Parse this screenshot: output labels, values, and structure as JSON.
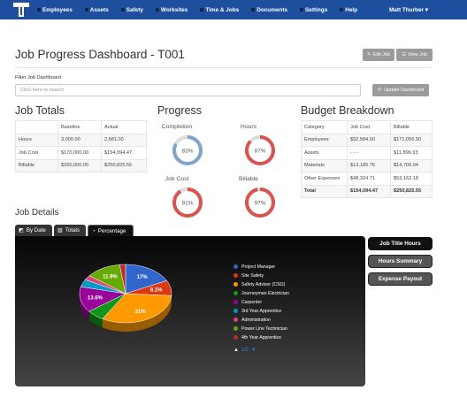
{
  "nav": {
    "items": [
      {
        "label": "Employees",
        "icon": "users-icon"
      },
      {
        "label": "Assets",
        "icon": "truck-icon"
      },
      {
        "label": "Safety",
        "icon": "shield-icon"
      },
      {
        "label": "Worksites",
        "icon": "map-icon"
      },
      {
        "label": "Time & Jobs",
        "icon": "clock-icon"
      },
      {
        "label": "Documents",
        "icon": "file-icon"
      },
      {
        "label": "Settings",
        "icon": "gear-icon"
      },
      {
        "label": "Help",
        "icon": "help-icon"
      }
    ],
    "user": "Matt Thurber ▾"
  },
  "header": {
    "title": "Job Progress Dashboard - T001",
    "edit_label": "Edit Job",
    "view_label": "View Job"
  },
  "filter": {
    "label": "Filter Job Dashboard",
    "placeholder": "Click here to search",
    "update_label": "Update Dashboard"
  },
  "job_totals": {
    "title": "Job Totals",
    "headers": [
      "",
      "Baseline",
      "Actual"
    ],
    "rows": [
      [
        "Hours",
        "3,000.00",
        "2,581.00"
      ],
      [
        "Job Cost",
        "$170,000.00",
        "$154,094.47"
      ],
      [
        "Billable",
        "$260,000.00",
        "$250,825.55"
      ]
    ]
  },
  "progress": {
    "title": "Progress",
    "items": [
      {
        "label": "Completion",
        "percent": 83,
        "text": "83%",
        "color": "#7fa4cc"
      },
      {
        "label": "Hours",
        "percent": 87,
        "text": "87%",
        "color": "#d9534f"
      },
      {
        "label": "Job Cost",
        "percent": 91,
        "text": "91%",
        "color": "#d9534f"
      },
      {
        "label": "Billable",
        "percent": 97,
        "text": "97%",
        "color": "#d9534f"
      }
    ]
  },
  "budget": {
    "title": "Budget Breakdown",
    "headers": [
      "Category",
      "Job Cost",
      "Billable"
    ],
    "rows": [
      [
        "Employees",
        "$92,584.00",
        "$171,056.50"
      ],
      [
        "Assets",
        "- - -",
        "$11,896.93"
      ],
      [
        "Materials",
        "$13,185.76",
        "$14,709.94"
      ],
      [
        "Other Expenses",
        "$48,324.71",
        "$53,162.18"
      ],
      [
        "Total",
        "$154,094.47",
        "$250,825.55"
      ]
    ]
  },
  "job_details": {
    "title": "Job Details",
    "tabs": [
      "By Date",
      "Totals",
      "Percentage"
    ],
    "side_buttons": [
      "Job Title Hours",
      "Hours Summary",
      "Expense Payout"
    ],
    "pager": "1/2"
  },
  "chart_data": {
    "type": "pie",
    "title": "",
    "labels": [
      "Project Manager",
      "Site Safety",
      "Safety Advisor (CSO)",
      "Journeyman Electrician",
      "Carpenter",
      "3rd Year Apprentice",
      "Administration",
      "Power Line Technician",
      "4th Year Apprentice"
    ],
    "values": [
      17,
      8.1,
      31,
      6,
      13.6,
      4,
      2.5,
      11.9,
      2
    ],
    "value_labels": [
      "17%",
      "8.1%",
      "31%",
      "",
      "13.6%",
      "",
      "",
      "11.9%",
      ""
    ],
    "colors": [
      "#3366cc",
      "#dc3912",
      "#ff9900",
      "#109618",
      "#990099",
      "#0099c6",
      "#dd4477",
      "#66aa00",
      "#b82e2e"
    ],
    "legend": "right"
  }
}
